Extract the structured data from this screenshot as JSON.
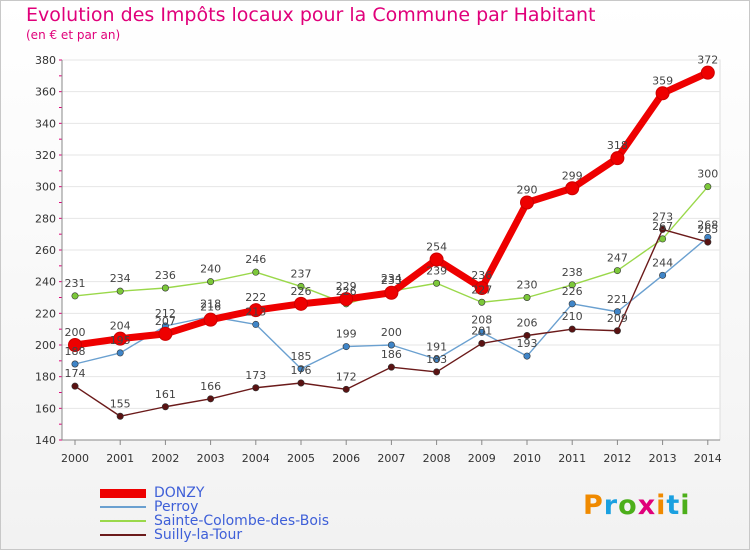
{
  "title": "Evolution des Impôts locaux pour la Commune par Habitant",
  "subtitle": "(en € et par an)",
  "logo": {
    "text": "Proxiti",
    "colors": [
      "#f08a00",
      "#1aa0e0",
      "#4caf1a",
      "#e0007a"
    ]
  },
  "chart_data": {
    "type": "line",
    "title": "Evolution des Impôts locaux pour la Commune par Habitant",
    "ylabel": "(en € et par an)",
    "categories": [
      "2000",
      "2001",
      "2002",
      "2003",
      "2004",
      "2005",
      "2006",
      "2007",
      "2008",
      "2009",
      "2010",
      "2011",
      "2012",
      "2013",
      "2014"
    ],
    "ylim": [
      140,
      380
    ],
    "yticks": [
      140,
      160,
      180,
      200,
      220,
      240,
      260,
      280,
      300,
      320,
      340,
      360,
      380
    ],
    "series": [
      {
        "name": "Sainte-Colombe-des-Bois",
        "color": "#9ad84a",
        "marker": "#7cc83a",
        "values": [
          231,
          234,
          236,
          240,
          246,
          237,
          226,
          234,
          239,
          227,
          230,
          238,
          247,
          267,
          300
        ],
        "labels": [
          "231",
          "234",
          "236",
          "240",
          "246",
          "237",
          "226",
          "234",
          "239",
          "227",
          "230",
          "238",
          "247",
          "267",
          "300"
        ]
      },
      {
        "name": "Perroy",
        "color": "#6aa0d0",
        "marker": "#3f85c8",
        "values": [
          188,
          195,
          212,
          218,
          213,
          185,
          199,
          200,
          191,
          208,
          193,
          226,
          221,
          244,
          268
        ],
        "labels": [
          "188",
          "195",
          "212",
          "218",
          "213",
          "185",
          "199",
          "200",
          "191",
          "208",
          "193",
          "226",
          "221",
          "244",
          "268"
        ]
      },
      {
        "name": "Suilly-la-Tour",
        "color": "#6b1a1a",
        "marker": "#5a1212",
        "values": [
          174,
          155,
          161,
          166,
          173,
          176,
          172,
          186,
          183,
          201,
          206,
          210,
          209,
          273,
          265
        ],
        "labels": [
          "174",
          "155",
          "161",
          "166",
          "173",
          "176",
          "172",
          "186",
          "183",
          "201",
          "206",
          "210",
          "209",
          "273",
          "265"
        ]
      },
      {
        "name": "DONZY",
        "color": "#ee0000",
        "marker": "#ee0000",
        "values": [
          200,
          204,
          207,
          216,
          222,
          226,
          229,
          233,
          254,
          236,
          290,
          299,
          318,
          359,
          372
        ],
        "labels": [
          "200",
          "204",
          "207",
          "216",
          "222",
          "226",
          "229",
          "233",
          "254",
          "236",
          "290",
          "299",
          "318",
          "359",
          "372"
        ]
      }
    ],
    "legend": [
      "DONZY",
      "Perroy",
      "Sainte-Colombe-des-Bois",
      "Suilly-la-Tour"
    ],
    "legend_position": "bottom-left"
  }
}
